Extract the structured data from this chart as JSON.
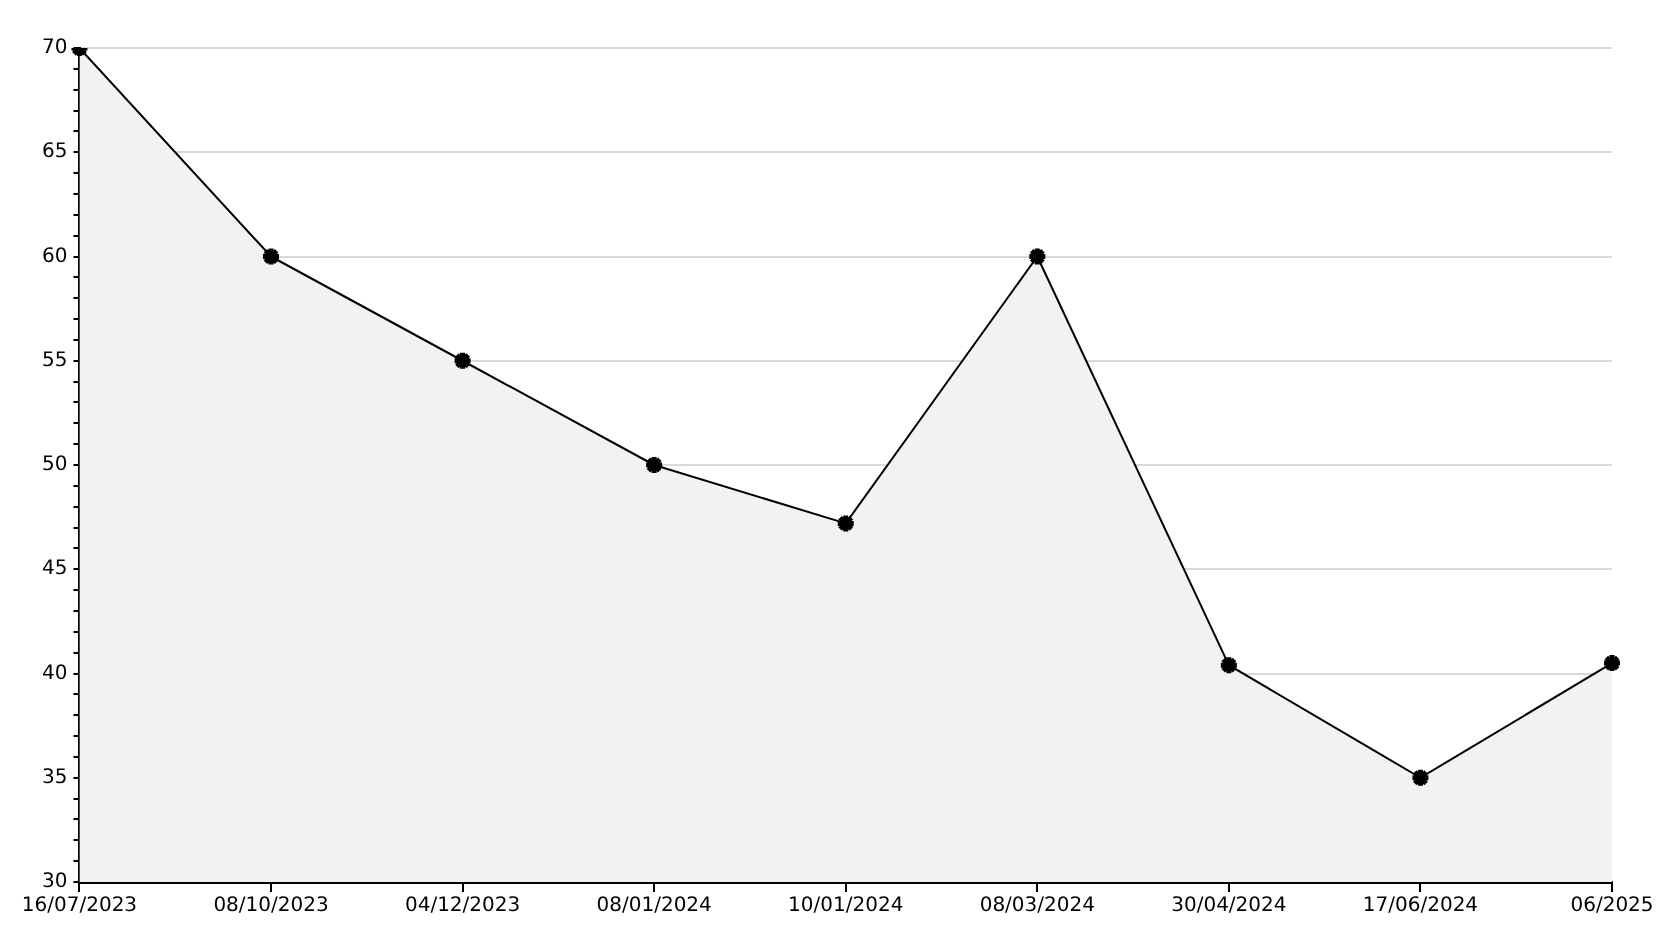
{
  "chart_data": {
    "type": "area",
    "categories": [
      "16/07/2023",
      "08/10/2023",
      "04/12/2023",
      "08/01/2024",
      "10/01/2024",
      "08/03/2024",
      "30/04/2024",
      "17/06/2024",
      "06/2025"
    ],
    "series": [
      {
        "color": "#000000",
        "values": [
          70,
          60,
          55,
          50,
          47.2,
          60,
          40.4,
          35,
          40.5
        ]
      }
    ],
    "ylim": [
      30,
      70
    ],
    "yticks": [
      30,
      {
        "value": 31,
        "label": null
      },
      {
        "value": 32,
        "label": null
      },
      {
        "value": 33,
        "label": null
      },
      {
        "value": 34,
        "label": null
      },
      35,
      {
        "value": 36,
        "label": null
      },
      {
        "value": 37,
        "label": null
      },
      {
        "value": 38,
        "label": null
      },
      {
        "value": 39,
        "label": null
      },
      40,
      {
        "value": 41,
        "label": null
      },
      {
        "value": 42,
        "label": null
      },
      {
        "value": 43,
        "label": null
      },
      {
        "value": 44,
        "label": null
      },
      45,
      {
        "value": 46,
        "label": null
      },
      {
        "value": 47,
        "label": null
      },
      {
        "value": 48,
        "label": null
      },
      {
        "value": 49,
        "label": null
      },
      50,
      {
        "value": 51,
        "label": null
      },
      {
        "value": 52,
        "label": null
      },
      {
        "value": 53,
        "label": null
      },
      {
        "value": 54,
        "label": null
      },
      55,
      {
        "value": 56,
        "label": null
      },
      {
        "value": 57,
        "label": null
      },
      {
        "value": 58,
        "label": null
      },
      {
        "value": 59,
        "label": null
      },
      60,
      {
        "value": 61,
        "label": null
      },
      {
        "value": 62,
        "label": null
      },
      {
        "value": 63,
        "label": null
      },
      {
        "value": 64,
        "label": null
      },
      65,
      {
        "value": 66,
        "label": null
      },
      {
        "value": 67,
        "label": null
      },
      {
        "value": 68,
        "label": null
      },
      {
        "value": 69,
        "label": null
      },
      70
    ],
    "grid": "y",
    "legend": false,
    "marker": "cross",
    "line_style": "solid"
  }
}
